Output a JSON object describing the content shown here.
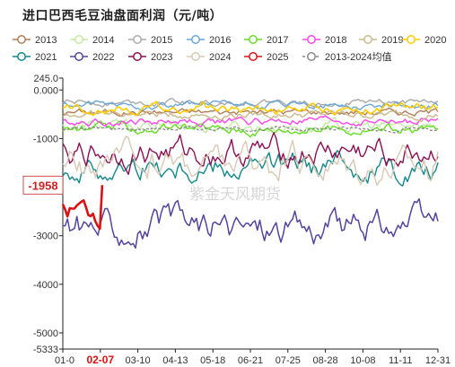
{
  "title": "进口巴西毛豆油盘面利润（元/吨）",
  "watermark": "紫金天风期货",
  "chart_data": {
    "type": "line",
    "title": "进口巴西毛豆油盘面利润（元/吨）",
    "ylim": [
      -5333,
      245
    ],
    "y_ticks": [
      245.0,
      0.0,
      -1000,
      -2000,
      -3000,
      -4000,
      -5000,
      -5333
    ],
    "y_tick_labels": [
      "245.0",
      "0.000",
      "-1000",
      "-2000",
      "-3000",
      "-4000",
      "-5000",
      "-5333"
    ],
    "x_tick_labels": [
      "01-0",
      "02-07",
      "03-10",
      "04-13",
      "05-18",
      "06-21",
      "07-25",
      "08-28",
      "10-08",
      "11-11",
      "12-31"
    ],
    "current_x_label": "02-07",
    "current_value_label": "-1958",
    "current_value": -1958,
    "grid": false,
    "legend_position": "top",
    "series": [
      {
        "name": "2013",
        "color": "#b07e5a",
        "level": -450,
        "spread": 150,
        "start": 0.0,
        "end": 1.0,
        "dash": false,
        "width": 1.4
      },
      {
        "name": "2014",
        "color": "#c2e8a6",
        "level": -750,
        "spread": 260,
        "start": 0.0,
        "end": 1.0,
        "dash": false,
        "width": 1.4
      },
      {
        "name": "2015",
        "color": "#aaaaaa",
        "level": -250,
        "spread": 140,
        "start": 0.0,
        "end": 1.0,
        "dash": false,
        "width": 1.4
      },
      {
        "name": "2016",
        "color": "#6aa6d8",
        "level": -320,
        "spread": 160,
        "start": 0.0,
        "end": 1.0,
        "dash": false,
        "width": 1.4
      },
      {
        "name": "2017",
        "color": "#66dd22",
        "level": -800,
        "spread": 220,
        "start": 0.0,
        "end": 1.0,
        "dash": false,
        "width": 1.4
      },
      {
        "name": "2018",
        "color": "#ff44ee",
        "level": -650,
        "spread": 180,
        "start": 0.0,
        "end": 1.0,
        "dash": false,
        "width": 1.4
      },
      {
        "name": "2019",
        "color": "#c9b98a",
        "level": -500,
        "spread": 170,
        "start": 0.0,
        "end": 1.0,
        "dash": false,
        "width": 1.4
      },
      {
        "name": "2020",
        "color": "#ffcc00",
        "level": -380,
        "spread": 200,
        "start": 0.0,
        "end": 1.0,
        "dash": false,
        "width": 1.6
      },
      {
        "name": "2021",
        "color": "#13888a",
        "level": -1600,
        "spread": 550,
        "start": 0.0,
        "end": 1.0,
        "dash": false,
        "width": 1.4
      },
      {
        "name": "2022",
        "color": "#55449e",
        "level": -2800,
        "spread": 700,
        "start": 0.0,
        "end": 1.0,
        "dash": false,
        "width": 1.5
      },
      {
        "name": "2023",
        "color": "#8a1155",
        "level": -1300,
        "spread": 600,
        "start": 0.0,
        "end": 1.0,
        "dash": false,
        "width": 1.4
      },
      {
        "name": "2024",
        "color": "#d8c9b4",
        "level": -1500,
        "spread": 700,
        "start": 0.0,
        "end": 1.0,
        "dash": false,
        "width": 1.4
      },
      {
        "name": "2025",
        "color": "#dd1111",
        "level": -2500,
        "spread": 500,
        "start": 0.0,
        "end": 0.105,
        "dash": false,
        "width": 2.6
      },
      {
        "name": "2013-2024均值",
        "color": "#888888",
        "level": -800,
        "spread": 90,
        "start": 0.0,
        "end": 1.0,
        "dash": true,
        "width": 1.3
      }
    ]
  }
}
